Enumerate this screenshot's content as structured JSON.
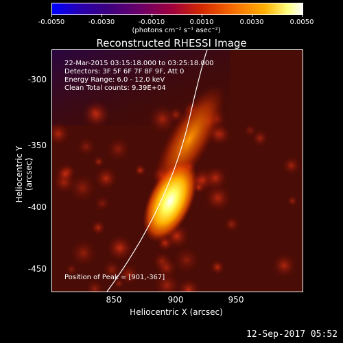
{
  "colorbar": {
    "ticks": [
      "-0.0050",
      "-0.0030",
      "-0.0010",
      "0.0010",
      "0.0030",
      "0.0050"
    ],
    "units": "(photons cm⁻² s⁻¹ asec⁻²)"
  },
  "chart_data": {
    "type": "heatmap",
    "title": "Reconstructed RHESSI Image",
    "xlabel": "Heliocentric X (arcsec)",
    "ylabel": "Heliocentric Y (arcsec)",
    "xlim": [
      805,
      995
    ],
    "ylim": [
      -470,
      -285
    ],
    "x_ticks": [
      "850",
      "900",
      "950"
    ],
    "y_ticks": [
      "-300",
      "-350",
      "-400",
      "-450"
    ],
    "colorbar_range": [
      -0.005,
      0.005
    ],
    "peak": {
      "x": 901,
      "y": -367
    }
  },
  "annotations": {
    "line1": "22-Mar-2015 03:15:18.000 to 03:25:18.000",
    "line2": "Detectors: 3F 5F 6F 7F 8F 9F, Att 0",
    "line3": "Energy Range: 6.0 - 12.0 keV",
    "line4": "Clean     Total counts: 9.39E+04",
    "peak_text": "Position of Peak = [901,-367]"
  },
  "footer": {
    "date": "12-Sep-2017 05:52"
  }
}
